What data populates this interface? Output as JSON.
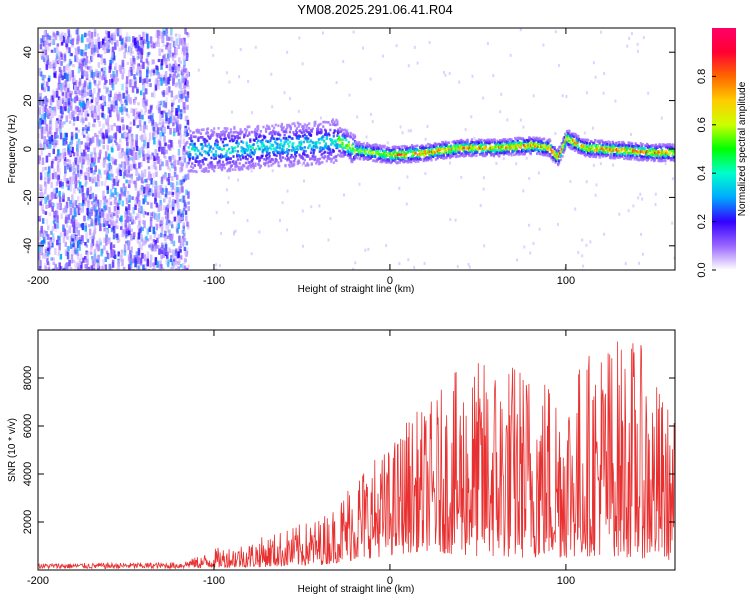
{
  "title": "YM08.2025.291.06.41.R04",
  "chart_data": [
    {
      "type": "heatmap",
      "xlabel": "Height of straight line (km)",
      "ylabel": "Frequency (Hz)",
      "xlim": [
        -200,
        162
      ],
      "ylim": [
        -50,
        50
      ],
      "x_ticks": [
        -200,
        -100,
        0,
        100
      ],
      "x_tick_labels": [
        "-200",
        "-100",
        "0",
        "100"
      ],
      "y_ticks": [
        -40,
        -20,
        0,
        20,
        40
      ],
      "y_tick_labels": [
        "-40",
        "-20",
        "0",
        "20",
        "40"
      ],
      "colorbar": {
        "label": "Normalized spectral amplitude",
        "range": [
          0,
          1
        ],
        "ticks": [
          0,
          0.2,
          0.4,
          0.6,
          0.8
        ],
        "tick_labels": [
          "0.0",
          "0.2",
          "0.4",
          "0.6",
          "0.8"
        ],
        "colors": [
          "#ffffff",
          "#9966ff",
          "#3300ff",
          "#00aaff",
          "#00ffcc",
          "#00ff00",
          "#ccff00",
          "#ffcc00",
          "#ff6600",
          "#ff0033",
          "#ff0066"
        ]
      },
      "signal_ridge": {
        "description_points_x": [
          -115,
          -100,
          -80,
          -60,
          -40,
          -30,
          -20,
          0,
          20,
          40,
          60,
          80,
          90,
          95,
          100,
          110,
          130,
          150,
          162
        ],
        "center_freq": [
          0,
          0,
          1,
          2,
          3,
          4,
          0,
          -2,
          -1,
          1,
          1,
          2,
          1,
          -3,
          5,
          1,
          0,
          -1,
          -1
        ]
      },
      "grid": false
    },
    {
      "type": "line",
      "xlabel": "Height of straight line (km)",
      "ylabel": "SNR (10 * v/v)",
      "xlim": [
        -200,
        162
      ],
      "ylim": [
        0,
        10000
      ],
      "x_ticks": [
        -200,
        -100,
        0,
        100
      ],
      "x_tick_labels": [
        "-200",
        "-100",
        "0",
        "100"
      ],
      "y_ticks": [
        2000,
        4000,
        6000,
        8000
      ],
      "y_tick_labels": [
        "2000",
        "4000",
        "6000",
        "8000"
      ],
      "color": "#e83030",
      "envelope": {
        "x": [
          -200,
          -160,
          -120,
          -105,
          -100,
          -80,
          -60,
          -40,
          -30,
          -20,
          -10,
          0,
          10,
          20,
          40,
          60,
          80,
          100,
          120,
          140,
          162
        ],
        "ymax": [
          300,
          320,
          350,
          700,
          900,
          1200,
          1700,
          2200,
          2800,
          4300,
          4700,
          5200,
          6500,
          6800,
          8500,
          9000,
          8700,
          8200,
          9800,
          9800,
          6300
        ],
        "ymin": [
          50,
          50,
          50,
          80,
          100,
          100,
          150,
          200,
          300,
          400,
          500,
          600,
          700,
          800,
          600,
          500,
          500,
          500,
          600,
          500,
          400
        ]
      },
      "grid": false
    }
  ]
}
